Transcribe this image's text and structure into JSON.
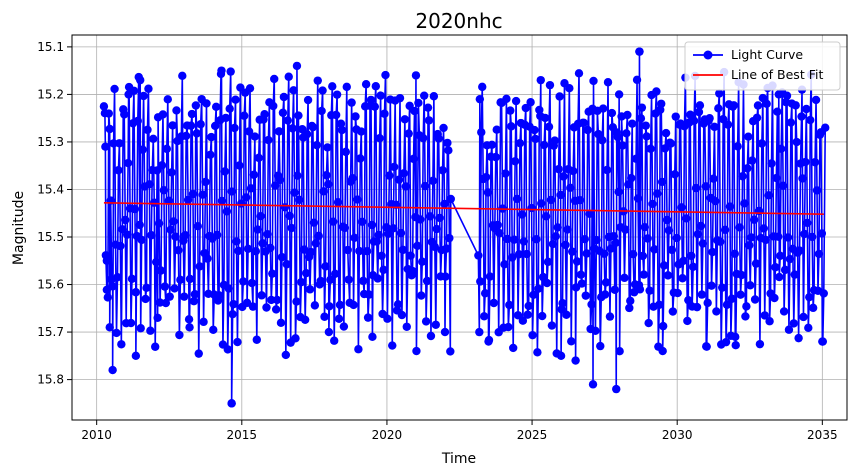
{
  "chart_data": {
    "type": "line",
    "title": "2020nhc",
    "xlabel": "Time",
    "ylabel": "Magnitude",
    "xlim": [
      2009.15,
      2035.85
    ],
    "ylim": [
      15.885,
      15.075
    ],
    "y_axis_inverted": true,
    "grid": true,
    "legend": {
      "placement": "top-right",
      "entries": [
        {
          "label": "Light Curve",
          "color": "#0000ff",
          "style": "line-with-circle-markers"
        },
        {
          "label": "Line of Best Fit",
          "color": "#ff0000",
          "style": "line"
        }
      ]
    },
    "xticks": [
      2010,
      2015,
      2020,
      2025,
      2030,
      2035
    ],
    "xtick_labels": [
      "2010",
      "2015",
      "2020",
      "2025",
      "2030",
      "2035"
    ],
    "yticks": [
      15.1,
      15.2,
      15.3,
      15.4,
      15.5,
      15.6,
      15.7,
      15.8
    ],
    "ytick_labels": [
      "15.1",
      "15.2",
      "15.3",
      "15.4",
      "15.5",
      "15.6",
      "15.7",
      "15.8"
    ],
    "series": [
      {
        "name": "Light Curve",
        "color": "#0000ff",
        "x_range": [
          2010.25,
          2035.05
        ],
        "gap": [
          2022.2,
          2023.15
        ],
        "typical_bright_envelope": 15.22,
        "typical_faint_envelope": 15.67,
        "brightest": {
          "x": 2028.7,
          "y": 15.11
        },
        "faintest": {
          "x": 2014.65,
          "y": 15.85
        },
        "observations_per_year": 30,
        "oscillation_cycles_per_year": 6,
        "sample_points": [
          [
            2010.3,
            15.31
          ],
          [
            2010.35,
            15.55
          ],
          [
            2010.45,
            15.69
          ],
          [
            2010.55,
            15.78
          ],
          [
            2011.1,
            15.2
          ],
          [
            2011.35,
            15.75
          ],
          [
            2011.5,
            15.17
          ],
          [
            2012.1,
            15.67
          ],
          [
            2013.2,
            15.69
          ],
          [
            2014.3,
            15.15
          ],
          [
            2014.65,
            15.85
          ],
          [
            2016.9,
            15.14
          ],
          [
            2018.0,
            15.7
          ],
          [
            2019.5,
            15.71
          ],
          [
            2021.0,
            15.16
          ],
          [
            2022.0,
            15.7
          ],
          [
            2022.2,
            15.42
          ],
          [
            2023.2,
            15.21
          ],
          [
            2023.5,
            15.72
          ],
          [
            2025.3,
            15.17
          ],
          [
            2026.0,
            15.75
          ],
          [
            2026.5,
            15.76
          ],
          [
            2027.1,
            15.81
          ],
          [
            2027.9,
            15.82
          ],
          [
            2028.0,
            15.2
          ],
          [
            2028.7,
            15.11
          ],
          [
            2029.5,
            15.74
          ],
          [
            2031.0,
            15.73
          ],
          [
            2032.0,
            15.71
          ],
          [
            2033.5,
            15.2
          ],
          [
            2034.3,
            15.19
          ],
          [
            2035.0,
            15.72
          ],
          [
            2035.1,
            15.27
          ]
        ]
      },
      {
        "name": "Line of Best Fit",
        "color": "#ff0000",
        "x": [
          2010.25,
          2035.05
        ],
        "y": [
          15.428,
          15.452
        ]
      }
    ]
  }
}
